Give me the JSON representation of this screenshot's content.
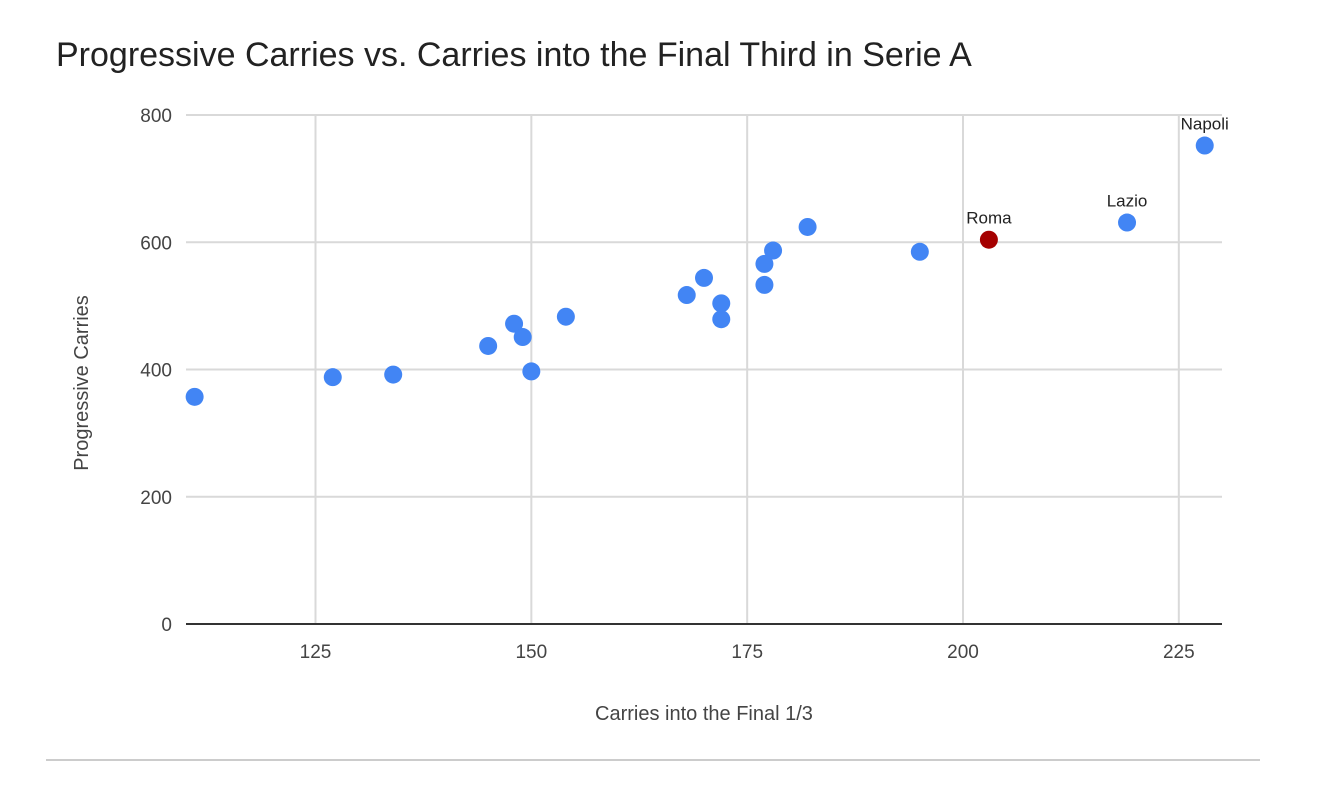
{
  "chart_data": {
    "type": "scatter",
    "title": "Progressive Carries vs. Carries into the Final Third in Serie A",
    "xlabel": "Carries into the Final 1/3",
    "ylabel": "Progressive Carries",
    "xlim": [
      110,
      230
    ],
    "ylim": [
      0,
      800
    ],
    "xticks": [
      "125",
      "150",
      "175",
      "200",
      "225"
    ],
    "xtick_values": [
      125,
      150,
      175,
      200,
      225
    ],
    "yticks": [
      "0",
      "200",
      "400",
      "600",
      "800"
    ],
    "ytick_values": [
      0,
      200,
      400,
      600,
      800
    ],
    "grid": true,
    "legend": "none",
    "colors": {
      "default": "#4285f4",
      "highlight": "#a50000",
      "grid": "#d9d9d9",
      "axis": "#333333"
    },
    "points": [
      {
        "x": 111,
        "y": 357
      },
      {
        "x": 127,
        "y": 388
      },
      {
        "x": 134,
        "y": 392
      },
      {
        "x": 145,
        "y": 437
      },
      {
        "x": 148,
        "y": 472
      },
      {
        "x": 149,
        "y": 451
      },
      {
        "x": 150,
        "y": 397
      },
      {
        "x": 154,
        "y": 483
      },
      {
        "x": 168,
        "y": 517
      },
      {
        "x": 170,
        "y": 544
      },
      {
        "x": 172,
        "y": 504
      },
      {
        "x": 172,
        "y": 479
      },
      {
        "x": 177,
        "y": 566
      },
      {
        "x": 177,
        "y": 533
      },
      {
        "x": 178,
        "y": 587
      },
      {
        "x": 182,
        "y": 624
      },
      {
        "x": 195,
        "y": 585
      },
      {
        "x": 203,
        "y": 604,
        "label": "Roma",
        "highlight": true
      },
      {
        "x": 219,
        "y": 631,
        "label": "Lazio"
      },
      {
        "x": 228,
        "y": 752,
        "label": "Napoli"
      }
    ]
  }
}
